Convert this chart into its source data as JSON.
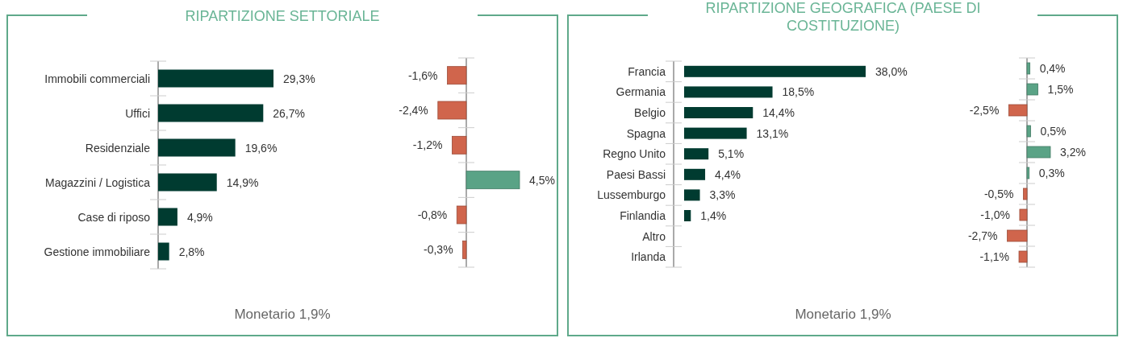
{
  "chart_data": [
    {
      "type": "bar",
      "orientation": "horizontal",
      "title": "RIPARTIZIONE SETTORIALE",
      "categories": [
        "Immobili commerciali",
        "Uffici",
        "Residenziale",
        "Magazzini / Logistica",
        "Case di riposo",
        "Gestione immobiliare"
      ],
      "values": [
        29.3,
        26.7,
        19.6,
        14.9,
        4.9,
        2.8
      ],
      "color": "#003b30",
      "value_labels": [
        "29,3%",
        "26,7%",
        "19,6%",
        "14,9%",
        "4,9%",
        "2,8%"
      ],
      "annotations": [
        "Monetario 1,9%"
      ]
    },
    {
      "type": "bar",
      "orientation": "horizontal",
      "categories": [
        null,
        null,
        null,
        null,
        null,
        null
      ],
      "values": [
        -1.6,
        -2.4,
        -1.2,
        4.5,
        -0.8,
        -0.3
      ],
      "colors": [
        "#d0654c",
        "#d0654c",
        "#d0654c",
        "#5aa386",
        "#d0654c",
        "#d0654c"
      ],
      "value_labels": [
        "-1,6%",
        "-2,4%",
        "-1,2%",
        "4,5%",
        "-0,8%",
        "-0,3%"
      ]
    },
    {
      "type": "bar",
      "orientation": "horizontal",
      "title": "RIPARTIZIONE GEOGRAFICA (PAESE DI COSTITUZIONE)",
      "categories": [
        "Francia",
        "Germania",
        "Belgio",
        "Spagna",
        "Regno Unito",
        "Paesi Bassi",
        "Lussemburgo",
        "Finlandia",
        "Altro",
        "Irlanda"
      ],
      "values": [
        38.0,
        18.5,
        14.4,
        13.1,
        5.1,
        4.4,
        3.3,
        1.4,
        null,
        null
      ],
      "color": "#003b30",
      "value_labels": [
        "38,0%",
        "18,5%",
        "14,4%",
        "13,1%",
        "5,1%",
        "4,4%",
        "3,3%",
        "1,4%",
        null,
        null
      ],
      "annotations": [
        "Monetario 1,9%"
      ]
    },
    {
      "type": "bar",
      "orientation": "horizontal",
      "categories": [
        null,
        null,
        null,
        null,
        null,
        null,
        null,
        null,
        null,
        null
      ],
      "values": [
        0.4,
        1.5,
        -2.5,
        0.5,
        3.2,
        0.3,
        -0.5,
        -1.0,
        -2.7,
        -1.1
      ],
      "colors": [
        "#5aa386",
        "#5aa386",
        "#d0654c",
        "#5aa386",
        "#5aa386",
        "#5aa386",
        "#d0654c",
        "#d0654c",
        "#d0654c",
        "#d0654c"
      ],
      "value_labels": [
        "0,4%",
        "1,5%",
        "-2,5%",
        "0,5%",
        "3,2%",
        "0,3%",
        "-0,5%",
        "-1,0%",
        "-2,7%",
        "-1,1%"
      ]
    }
  ]
}
